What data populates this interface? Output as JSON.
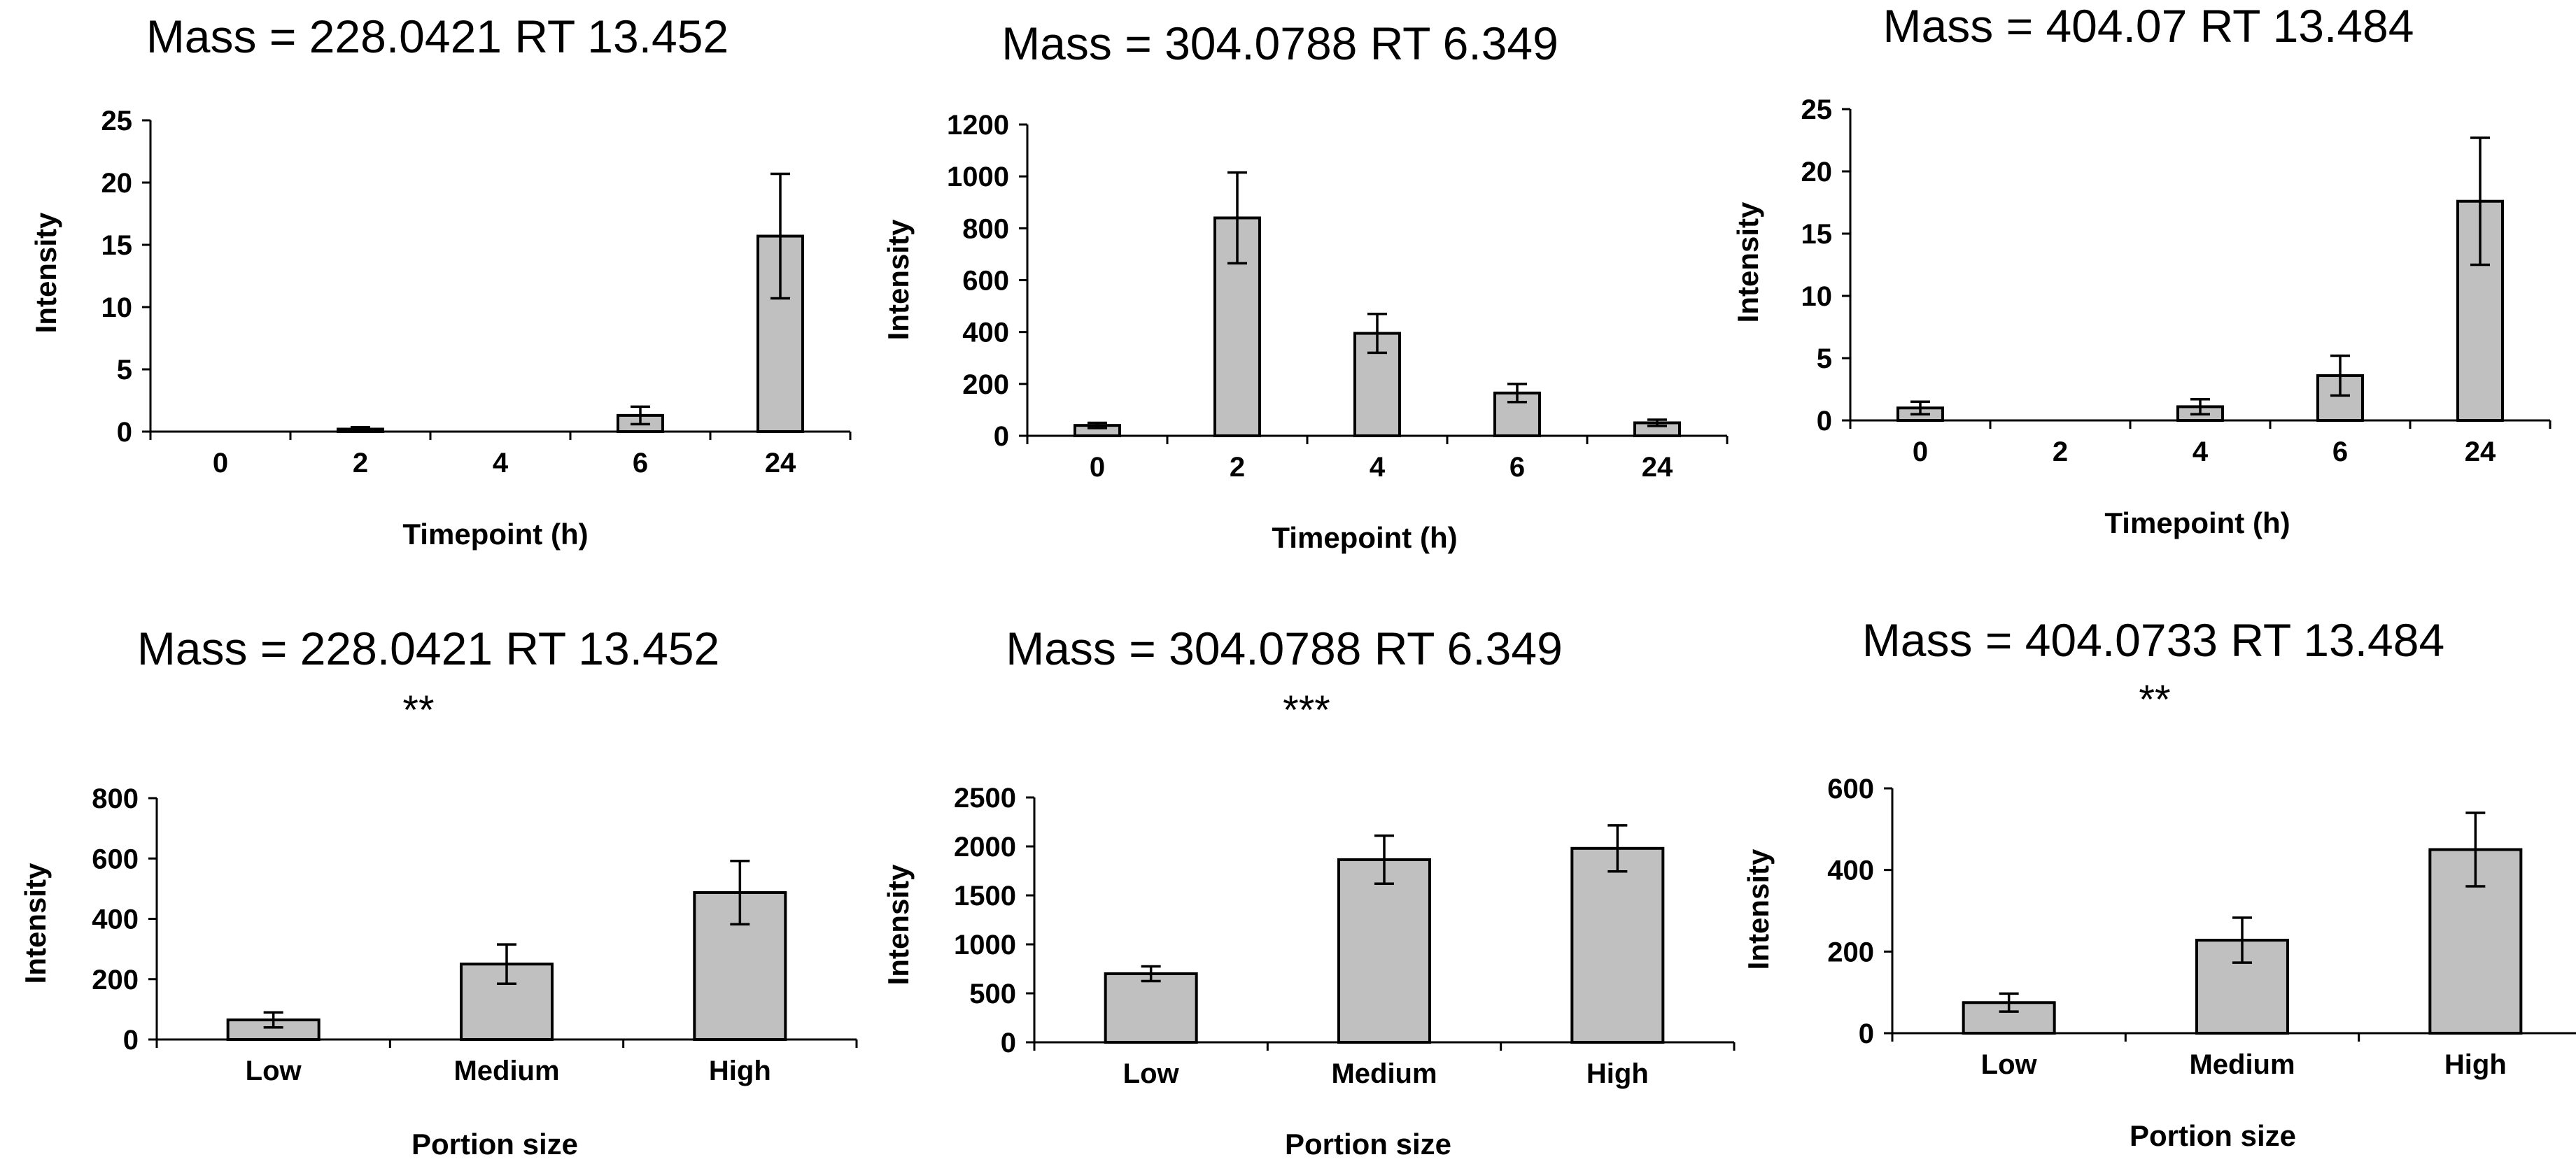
{
  "chart_data": [
    {
      "type": "bar",
      "title": "Mass = 228.0421 RT 13.452",
      "significance": "",
      "categories": [
        "0",
        "2",
        "4",
        "6",
        "24"
      ],
      "values": [
        0,
        0.2,
        0,
        1.3,
        15.7
      ],
      "errors": [
        0,
        0.15,
        0,
        0.7,
        5.0
      ],
      "xlabel": "Timepoint (h)",
      "ylabel": "Intensity",
      "ylim": [
        0,
        25
      ],
      "yticks": [
        0,
        5,
        10,
        15,
        20,
        25
      ]
    },
    {
      "type": "bar",
      "title": "Mass = 304.0788 RT 6.349",
      "significance": "",
      "categories": [
        "0",
        "2",
        "4",
        "6",
        "24"
      ],
      "values": [
        40,
        840,
        395,
        165,
        50
      ],
      "errors": [
        10,
        175,
        75,
        35,
        12
      ],
      "xlabel": "Timepoint (h)",
      "ylabel": "Intensity",
      "ylim": [
        0,
        1200
      ],
      "yticks": [
        0,
        200,
        400,
        600,
        800,
        1000,
        1200
      ]
    },
    {
      "type": "bar",
      "title": "Mass = 404.07 RT 13.484",
      "significance": "",
      "categories": [
        "0",
        "2",
        "4",
        "6",
        "24"
      ],
      "values": [
        1.0,
        0,
        1.1,
        3.6,
        17.6
      ],
      "errors": [
        0.5,
        0,
        0.6,
        1.6,
        5.1
      ],
      "xlabel": "Timepoint (h)",
      "ylabel": "Intensity",
      "ylim": [
        0,
        25
      ],
      "yticks": [
        0,
        5,
        10,
        15,
        20,
        25
      ]
    },
    {
      "type": "bar",
      "title": "Mass = 228.0421 RT 13.452",
      "significance": "**",
      "categories": [
        "Low",
        "Medium",
        "High"
      ],
      "values": [
        65,
        250,
        487
      ],
      "errors": [
        25,
        65,
        105
      ],
      "xlabel": "Portion size",
      "ylabel": "Intensity",
      "ylim": [
        0,
        800
      ],
      "yticks": [
        0,
        200,
        400,
        600,
        800
      ]
    },
    {
      "type": "bar",
      "title": "Mass = 304.0788 RT 6.349",
      "significance": "***",
      "categories": [
        "Low",
        "Medium",
        "High"
      ],
      "values": [
        700,
        1865,
        1980
      ],
      "errors": [
        75,
        245,
        235
      ],
      "xlabel": "Portion size",
      "ylabel": "Intensity",
      "ylim": [
        0,
        2500
      ],
      "yticks": [
        0,
        500,
        1000,
        1500,
        2000,
        2500
      ]
    },
    {
      "type": "bar",
      "title": "Mass = 404.0733 RT 13.484",
      "significance": "**",
      "categories": [
        "Low",
        "Medium",
        "High"
      ],
      "values": [
        75,
        228,
        450
      ],
      "errors": [
        22,
        55,
        90
      ],
      "xlabel": "Portion size",
      "ylabel": "Intensity",
      "ylim": [
        0,
        600
      ],
      "yticks": [
        0,
        200,
        400,
        600
      ]
    }
  ]
}
